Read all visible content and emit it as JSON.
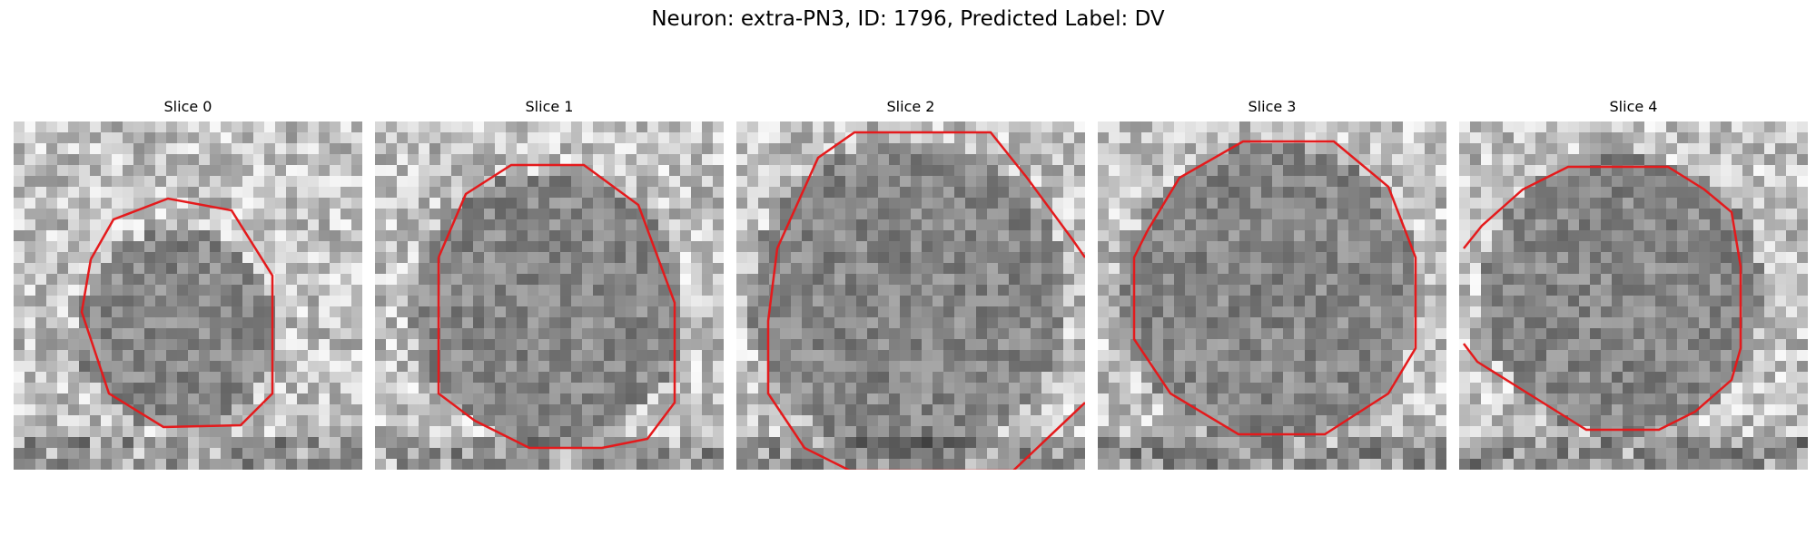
{
  "figure": {
    "title": "Neuron: extra-PN3, ID: 1796, Predicted Label: DV"
  },
  "colors": {
    "contour": "#e41a1c",
    "background": "#ffffff"
  },
  "panels": [
    {
      "title": "Slice 0"
    },
    {
      "title": "Slice 1"
    },
    {
      "title": "Slice 2"
    },
    {
      "title": "Slice 3"
    },
    {
      "title": "Slice 4"
    }
  ]
}
